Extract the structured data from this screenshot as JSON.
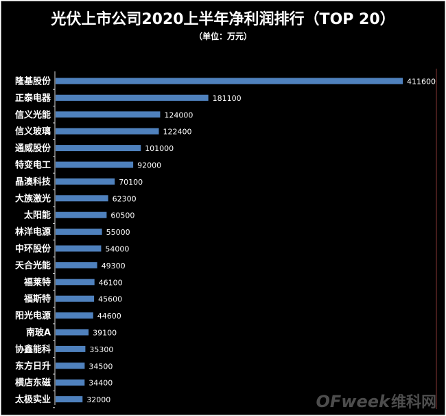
{
  "chart_data": {
    "type": "bar",
    "orientation": "horizontal",
    "title": "光伏上市公司2020上半年净利润排行（TOP 20）",
    "subtitle": "（单位：万元）",
    "categories": [
      "隆基股份",
      "正泰电器",
      "信义光能",
      "信义玻璃",
      "通威股份",
      "特变电工",
      "晶澳科技",
      "大族激光",
      "太阳能",
      "林洋电源",
      "中环股份",
      "天合光能",
      "福莱特",
      "福斯特",
      "阳光电源",
      "南玻A",
      "协鑫能科",
      "东方日升",
      "横店东磁",
      "太极实业"
    ],
    "values": [
      411600,
      181100,
      124000,
      122400,
      101000,
      92000,
      70100,
      62300,
      60500,
      55000,
      54000,
      49300,
      46100,
      45600,
      44600,
      39100,
      35300,
      34500,
      34400,
      32000
    ],
    "xlim": [
      0,
      411600
    ],
    "xlabel": "",
    "ylabel": "",
    "grid": false,
    "legend": "none",
    "data_labels": true
  },
  "colors": {
    "background": "#000000",
    "bar": "#4f81bd",
    "text": "#ffffff",
    "axis": "#d9d9d9",
    "border_accent": "#c0504d"
  },
  "watermark": {
    "brand": "OFweek",
    "brand_cn": "维科网"
  }
}
